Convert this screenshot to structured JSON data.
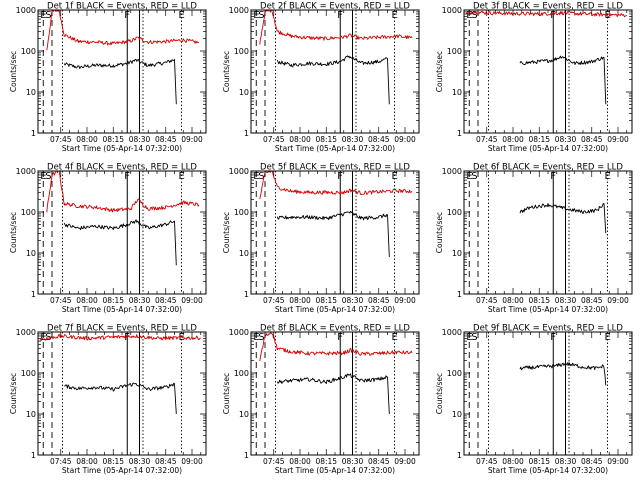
{
  "figure": {
    "colors": {
      "events": "#000000",
      "lld": "#d40000",
      "axes": "#000000",
      "background": "#ffffff"
    },
    "x_tick_labels": [
      "07:45",
      "08:00",
      "08:15",
      "08:30",
      "08:45",
      "09:00"
    ],
    "x_title": "Start Time (05-Apr-14 07:32:00)",
    "y_title": "Counts/sec",
    "y_tick_labels": [
      "1",
      "10",
      "100",
      "1000"
    ],
    "marker_labels": {
      "start": "S",
      "end": "E",
      "flare": "F",
      "early": "E"
    }
  },
  "chart_data": [
    {
      "type": "line",
      "title": "Det 1f BLACK = Events, RED = LLD",
      "xlabel": "Start Time (05-Apr-14 07:32:00)",
      "ylabel": "Counts/sec",
      "xlim": [
        "07:32",
        "09:08"
      ],
      "ylim": [
        1,
        1000
      ],
      "yscale": "log",
      "grid": false,
      "markers": {
        "dashed": [
          "07:35",
          "07:40"
        ],
        "dotted": [
          "07:46",
          "08:32",
          "08:54"
        ],
        "solid": [
          "08:23",
          "08:30"
        ]
      },
      "series": [
        {
          "color": "#000000",
          "x": [
            "07:47",
            "07:55",
            "08:05",
            "08:15",
            "08:23",
            "08:28",
            "08:35",
            "08:45",
            "08:50",
            "08:51"
          ],
          "values": [
            48,
            40,
            45,
            44,
            50,
            60,
            44,
            52,
            62,
            5
          ]
        },
        {
          "color": "#d40000",
          "x": [
            "07:37",
            "07:40",
            "07:44",
            "07:47",
            "07:55",
            "08:05",
            "08:15",
            "08:25",
            "08:29",
            "08:35",
            "08:45",
            "08:55",
            "09:04"
          ],
          "values": [
            100,
            900,
            1000,
            250,
            170,
            165,
            150,
            175,
            210,
            165,
            170,
            185,
            160
          ]
        }
      ]
    },
    {
      "type": "line",
      "title": "Det 2f BLACK = Events, RED = LLD",
      "xlabel": "Start Time (05-Apr-14 07:32:00)",
      "ylabel": "Counts/sec",
      "xlim": [
        "07:32",
        "09:08"
      ],
      "ylim": [
        1,
        1000
      ],
      "yscale": "log",
      "grid": false,
      "markers": {
        "dashed": [
          "07:35",
          "07:40"
        ],
        "dotted": [
          "07:46",
          "08:32",
          "08:54"
        ],
        "solid": [
          "08:23",
          "08:30"
        ]
      },
      "series": [
        {
          "color": "#000000",
          "x": [
            "07:47",
            "07:55",
            "08:05",
            "08:15",
            "08:23",
            "08:28",
            "08:35",
            "08:45",
            "08:50",
            "08:51"
          ],
          "values": [
            55,
            45,
            50,
            48,
            55,
            75,
            50,
            55,
            65,
            5
          ]
        },
        {
          "color": "#d40000",
          "x": [
            "07:37",
            "07:40",
            "07:44",
            "07:47",
            "07:55",
            "08:05",
            "08:15",
            "08:25",
            "08:29",
            "08:35",
            "08:45",
            "08:55",
            "09:04"
          ],
          "values": [
            150,
            900,
            1000,
            300,
            230,
            210,
            200,
            220,
            240,
            200,
            215,
            230,
            210
          ]
        }
      ]
    },
    {
      "type": "line",
      "title": "Det 3f BLACK = Events, RED = LLD",
      "xlabel": "Start Time (05-Apr-14 07:32:00)",
      "ylabel": "Counts/sec",
      "xlim": [
        "07:32",
        "09:08"
      ],
      "ylim": [
        1,
        1000
      ],
      "yscale": "log",
      "grid": false,
      "markers": {
        "dashed": [
          "07:35",
          "07:40"
        ],
        "dotted": [
          "07:46",
          "08:32",
          "08:54"
        ],
        "solid": [
          "08:23",
          "08:30"
        ]
      },
      "series": [
        {
          "color": "#000000",
          "x": [
            "08:04",
            "08:15",
            "08:23",
            "08:28",
            "08:35",
            "08:45",
            "08:52",
            "08:53"
          ],
          "values": [
            50,
            55,
            60,
            75,
            50,
            55,
            70,
            5
          ]
        },
        {
          "color": "#d40000",
          "x": [
            "07:33",
            "07:37",
            "07:45",
            "08:00",
            "08:15",
            "08:28",
            "08:40",
            "08:55",
            "09:05"
          ],
          "values": [
            800,
            900,
            850,
            820,
            800,
            850,
            800,
            760,
            750
          ]
        }
      ]
    },
    {
      "type": "line",
      "title": "Det 4f BLACK = Events, RED = LLD",
      "xlabel": "Start Time (05-Apr-14 07:32:00)",
      "ylabel": "Counts/sec",
      "xlim": [
        "07:32",
        "09:08"
      ],
      "ylim": [
        1,
        1000
      ],
      "yscale": "log",
      "grid": false,
      "markers": {
        "dashed": [
          "07:35",
          "07:40"
        ],
        "dotted": [
          "07:46",
          "08:32",
          "08:54"
        ],
        "solid": [
          "08:23",
          "08:30"
        ]
      },
      "series": [
        {
          "color": "#000000",
          "x": [
            "07:47",
            "07:55",
            "08:05",
            "08:15",
            "08:23",
            "08:28",
            "08:35",
            "08:45",
            "08:50",
            "08:51"
          ],
          "values": [
            50,
            40,
            45,
            40,
            50,
            60,
            40,
            50,
            60,
            5
          ]
        },
        {
          "color": "#d40000",
          "x": [
            "07:37",
            "07:40",
            "07:44",
            "07:47",
            "07:55",
            "08:05",
            "08:15",
            "08:25",
            "08:29",
            "08:35",
            "08:45",
            "08:55",
            "09:04"
          ],
          "values": [
            100,
            800,
            1000,
            160,
            140,
            130,
            110,
            120,
            200,
            120,
            130,
            170,
            150
          ]
        }
      ]
    },
    {
      "type": "line",
      "title": "Det 5f BLACK = Events, RED = LLD",
      "xlabel": "Start Time (05-Apr-14 07:32:00)",
      "ylabel": "Counts/sec",
      "xlim": [
        "07:32",
        "09:08"
      ],
      "ylim": [
        1,
        1000
      ],
      "yscale": "log",
      "grid": false,
      "markers": {
        "dashed": [
          "07:35",
          "07:40"
        ],
        "dotted": [
          "07:46",
          "08:32",
          "08:54"
        ],
        "solid": [
          "08:23",
          "08:30"
        ]
      },
      "series": [
        {
          "color": "#000000",
          "x": [
            "07:47",
            "07:55",
            "08:05",
            "08:15",
            "08:23",
            "08:28",
            "08:35",
            "08:45",
            "08:50",
            "08:51"
          ],
          "values": [
            70,
            75,
            75,
            70,
            85,
            100,
            70,
            75,
            85,
            8
          ]
        },
        {
          "color": "#d40000",
          "x": [
            "07:37",
            "07:40",
            "07:44",
            "07:47",
            "07:55",
            "08:05",
            "08:15",
            "08:25",
            "08:29",
            "08:35",
            "08:45",
            "08:55",
            "09:04"
          ],
          "values": [
            200,
            900,
            1000,
            400,
            320,
            300,
            300,
            300,
            340,
            290,
            310,
            330,
            320
          ]
        }
      ]
    },
    {
      "type": "line",
      "title": "Det 6f BLACK = Events, RED = LLD",
      "xlabel": "Start Time (05-Apr-14 07:32:00)",
      "ylabel": "Counts/sec",
      "xlim": [
        "07:32",
        "09:08"
      ],
      "ylim": [
        1,
        1000
      ],
      "yscale": "log",
      "grid": false,
      "markers": {
        "dashed": [
          "07:35",
          "07:40"
        ],
        "dotted": [
          "07:46",
          "08:32",
          "08:54"
        ],
        "solid": [
          "08:23",
          "08:30"
        ]
      },
      "series": [
        {
          "color": "#000000",
          "x": [
            "08:04",
            "08:10",
            "08:20",
            "08:30",
            "08:40",
            "08:48",
            "08:52",
            "08:53"
          ],
          "values": [
            100,
            130,
            150,
            120,
            100,
            110,
            160,
            30
          ]
        }
      ]
    },
    {
      "type": "line",
      "title": "Det 7f BLACK = Events, RED = LLD",
      "xlabel": "Start Time (05-Apr-14 07:32:00)",
      "ylabel": "Counts/sec",
      "xlim": [
        "07:32",
        "09:08"
      ],
      "ylim": [
        1,
        1000
      ],
      "yscale": "log",
      "grid": false,
      "markers": {
        "dashed": [
          "07:35",
          "07:40"
        ],
        "dotted": [
          "07:46",
          "08:32",
          "08:54"
        ],
        "solid": [
          "08:23",
          "08:30"
        ]
      },
      "series": [
        {
          "color": "#000000",
          "x": [
            "07:47",
            "07:55",
            "08:05",
            "08:15",
            "08:23",
            "08:28",
            "08:35",
            "08:45",
            "08:50",
            "08:51"
          ],
          "values": [
            48,
            42,
            45,
            40,
            50,
            55,
            40,
            45,
            55,
            10
          ]
        },
        {
          "color": "#d40000",
          "x": [
            "07:33",
            "07:37",
            "07:45",
            "08:00",
            "08:15",
            "08:28",
            "08:40",
            "08:55",
            "09:05"
          ],
          "values": [
            650,
            700,
            800,
            700,
            750,
            800,
            700,
            720,
            720
          ]
        }
      ]
    },
    {
      "type": "line",
      "title": "Det 8f BLACK = Events, RED = LLD",
      "xlabel": "Start Time (05-Apr-14 07:32:00)",
      "ylabel": "Counts/sec",
      "xlim": [
        "07:32",
        "09:08"
      ],
      "ylim": [
        1,
        1000
      ],
      "yscale": "log",
      "grid": false,
      "markers": {
        "dashed": [
          "07:35",
          "07:40"
        ],
        "dotted": [
          "07:46",
          "08:32",
          "08:54"
        ],
        "solid": [
          "08:23",
          "08:30"
        ]
      },
      "series": [
        {
          "color": "#000000",
          "x": [
            "07:47",
            "07:55",
            "08:05",
            "08:15",
            "08:23",
            "08:28",
            "08:35",
            "08:45",
            "08:50",
            "08:51"
          ],
          "values": [
            60,
            65,
            70,
            60,
            75,
            90,
            65,
            70,
            80,
            10
          ]
        },
        {
          "color": "#d40000",
          "x": [
            "07:37",
            "07:40",
            "07:44",
            "07:47",
            "07:55",
            "08:05",
            "08:15",
            "08:25",
            "08:29",
            "08:35",
            "08:45",
            "08:55",
            "09:04"
          ],
          "values": [
            200,
            800,
            1000,
            400,
            330,
            300,
            300,
            310,
            360,
            290,
            300,
            320,
            310
          ]
        }
      ]
    },
    {
      "type": "line",
      "title": "Det 9f BLACK = Events, RED = LLD",
      "xlabel": "Start Time (05-Apr-14 07:32:00)",
      "ylabel": "Counts/sec",
      "xlim": [
        "07:32",
        "09:08"
      ],
      "ylim": [
        1,
        1000
      ],
      "yscale": "log",
      "grid": false,
      "markers": {
        "dashed": [
          "07:35",
          "07:40"
        ],
        "dotted": [
          "07:46",
          "08:32",
          "08:54"
        ],
        "solid": [
          "08:23",
          "08:30"
        ]
      },
      "series": [
        {
          "color": "#000000",
          "x": [
            "08:04",
            "08:15",
            "08:25",
            "08:30",
            "08:40",
            "08:48",
            "08:52",
            "08:53"
          ],
          "values": [
            130,
            140,
            150,
            170,
            140,
            130,
            150,
            50
          ]
        }
      ]
    }
  ]
}
